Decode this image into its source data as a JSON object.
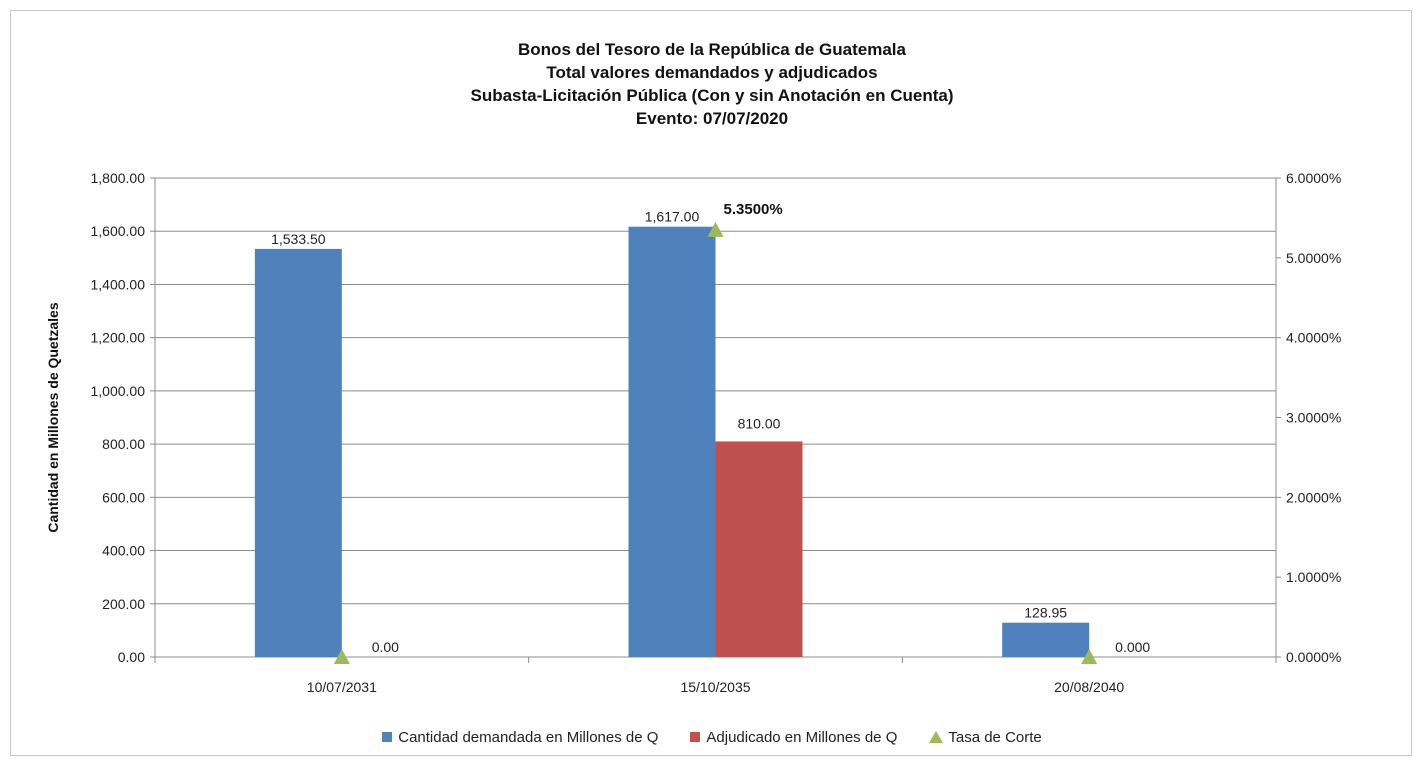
{
  "titles": {
    "line1": "Bonos del Tesoro de la República de Guatemala",
    "line2": "Total valores demandados y adjudicados",
    "line3": "Subasta-Licitación Pública (Con y sin Anotación en Cuenta)",
    "line4": "Evento: 07/07/2020"
  },
  "colors": {
    "demandado": "#4f81bd",
    "adjudicado": "#c0504d",
    "tasa": "#9bbb59"
  },
  "chart_data": {
    "type": "bar",
    "title": "Bonos del Tesoro de la República de Guatemala",
    "ylabel": "Cantidad en Millones de Quetzales",
    "categories": [
      "10/07/2031",
      "15/10/2035",
      "20/08/2040"
    ],
    "ylim": [
      0,
      1800
    ],
    "y2lim": [
      0,
      6
    ],
    "yticks": [
      "0.00",
      "200.00",
      "400.00",
      "600.00",
      "800.00",
      "1,000.00",
      "1,200.00",
      "1,400.00",
      "1,600.00",
      "1,800.00"
    ],
    "y2ticks": [
      "0.0000%",
      "1.0000%",
      "2.0000%",
      "3.0000%",
      "4.0000%",
      "5.0000%",
      "6.0000%"
    ],
    "grid": true,
    "legend_position": "bottom",
    "series": [
      {
        "name": "Cantidad demandada en Millones de Q",
        "type": "bar",
        "values": [
          1533.5,
          1617.0,
          128.95
        ],
        "labels": [
          "1,533.50",
          "1,617.00",
          "128.95"
        ]
      },
      {
        "name": "Adjudicado en Millones de Q",
        "type": "bar",
        "values": [
          0,
          810.0,
          0
        ],
        "labels": [
          "0.00",
          "810.00",
          "0.000"
        ]
      },
      {
        "name": "Tasa de Corte",
        "type": "scatter",
        "axis": "secondary",
        "values": [
          0,
          5.35,
          0
        ],
        "labels": [
          "",
          "5.3500%",
          ""
        ]
      }
    ]
  }
}
